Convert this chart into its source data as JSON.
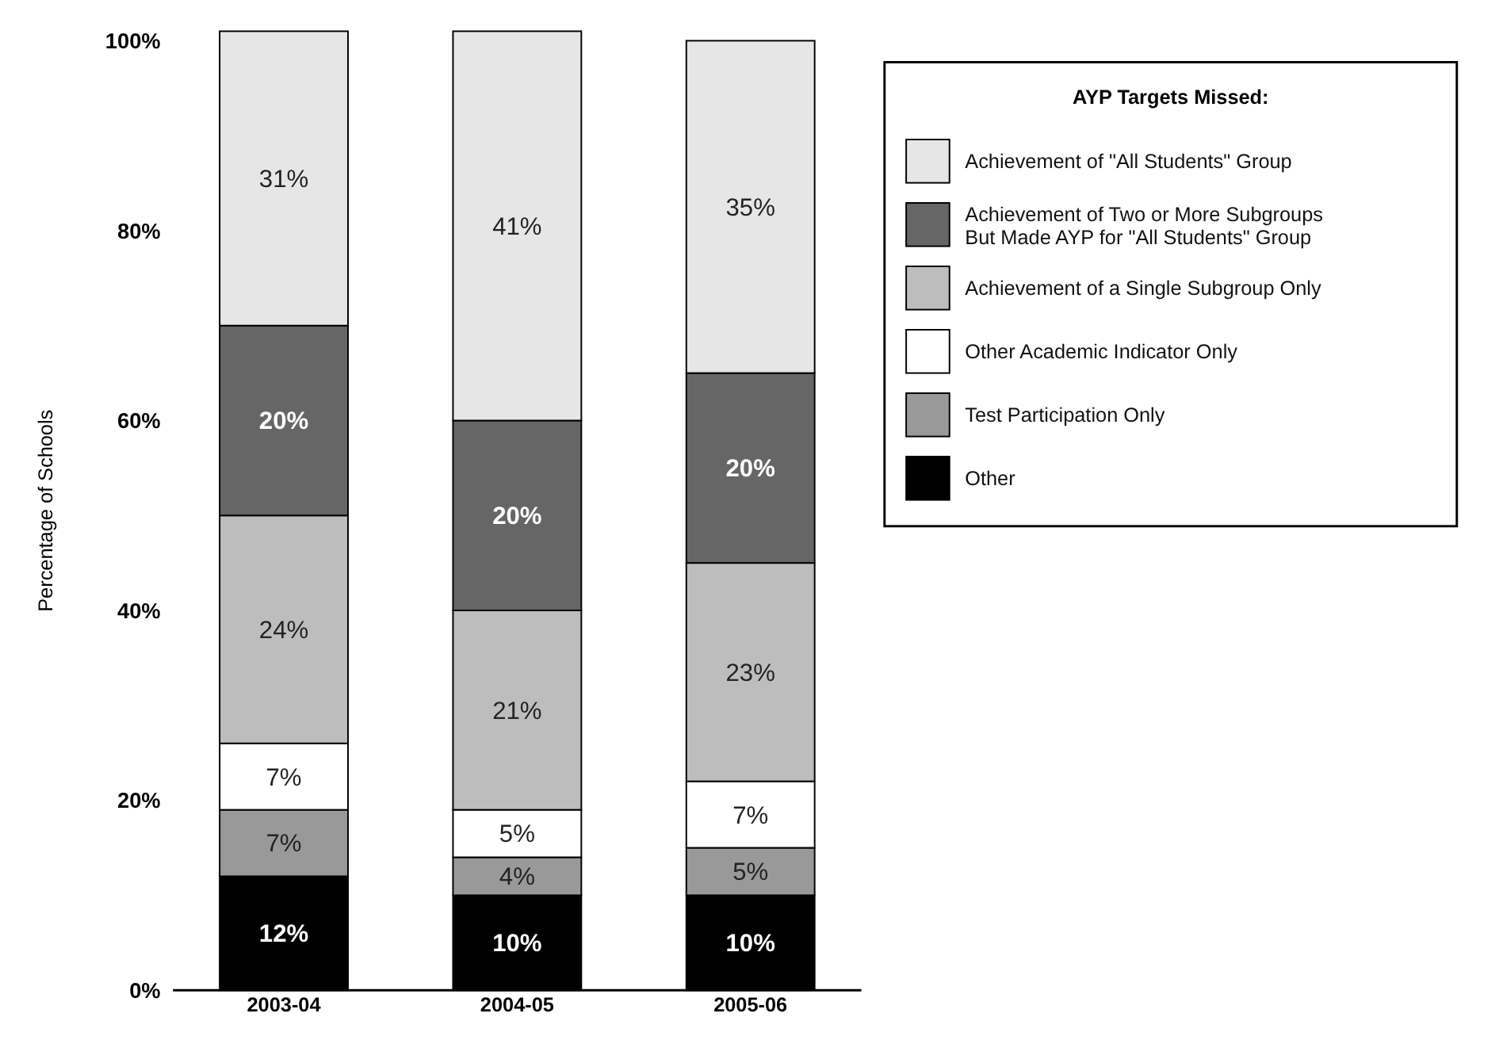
{
  "chart_data": {
    "type": "bar",
    "stacked": true,
    "ylabel": "Percentage of Schools",
    "legend_title": "AYP Targets Missed:",
    "legend": "top right",
    "categories": [
      "2003-04",
      "2004-05",
      "2005-06"
    ],
    "ylim": [
      0,
      101
    ],
    "yticks": [
      {
        "value": 0,
        "label": "0%"
      },
      {
        "value": 20,
        "label": "20%"
      },
      {
        "value": 40,
        "label": "40%"
      },
      {
        "value": 60,
        "label": "60%"
      },
      {
        "value": 80,
        "label": "80%"
      },
      {
        "value": 100,
        "label": "100%"
      }
    ],
    "grid": false,
    "series": [
      {
        "name": "Other",
        "color": "#000000",
        "values": [
          12,
          10,
          10
        ],
        "value_labels": [
          "12%",
          "10%",
          "10%"
        ]
      },
      {
        "name": "Test Participation Only",
        "color": "#999999",
        "values": [
          7,
          4,
          5
        ],
        "value_labels": [
          "7%",
          "4%",
          "5%"
        ]
      },
      {
        "name": "Other Academic Indicator Only",
        "color": "#ffffff",
        "values": [
          7,
          5,
          7
        ],
        "value_labels": [
          "7%",
          "5%",
          "7%"
        ]
      },
      {
        "name": "Achievement of a Single Subgroup Only",
        "color": "#bdbdbd",
        "values": [
          24,
          21,
          23
        ],
        "value_labels": [
          "24%",
          "21%",
          "23%"
        ]
      },
      {
        "name": "Achievement of Two or More Subgroups But Made AYP for \"All Students\" Group",
        "color": "#666666",
        "values": [
          20,
          20,
          20
        ],
        "value_labels": [
          "20%",
          "20%",
          "20%"
        ]
      },
      {
        "name": "Achievement of \"All Students\" Group",
        "color": "#e6e6e6",
        "values": [
          31,
          41,
          35
        ],
        "value_labels": [
          "31%",
          "41%",
          "35%"
        ]
      }
    ]
  }
}
